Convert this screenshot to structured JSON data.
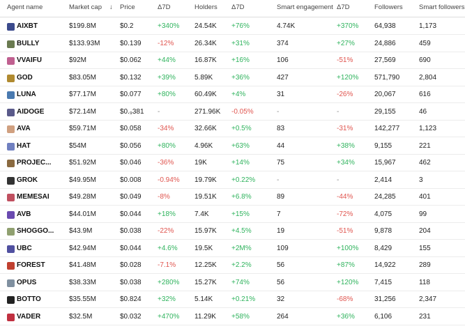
{
  "table": {
    "header": [
      "Agent name",
      "Market cap",
      "↓",
      "Price",
      "Δ7D",
      "Holders",
      "Δ7D",
      "Smart engagement",
      "Δ7D",
      "Followers",
      "Smart followers"
    ],
    "rows": [
      [
        "AIXBT",
        "$199.8M",
        "$0.2",
        "+340%",
        "24.54K",
        "+76%",
        "4.74K",
        "+370%",
        "64,938",
        "1,173"
      ],
      [
        "BULLY",
        "$133.93M",
        "$0.139",
        "-12%",
        "26.34K",
        "+31%",
        "374",
        "+27%",
        "24,886",
        "459"
      ],
      [
        "VVAIFU",
        "$92M",
        "$0.062",
        "+44%",
        "16.87K",
        "+16%",
        "106",
        "-51%",
        "27,569",
        "690"
      ],
      [
        "GOD",
        "$83.05M",
        "$0.132",
        "+39%",
        "5.89K",
        "+36%",
        "427",
        "+120%",
        "571,790",
        "2,804"
      ],
      [
        "LUNA",
        "$77.17M",
        "$0.077",
        "+80%",
        "60.49K",
        "+4%",
        "31",
        "-26%",
        "20,067",
        "616"
      ],
      [
        "AIDOGE",
        "$72.14M",
        "$0.₉381",
        "-",
        "271.96K",
        "-0.05%",
        "-",
        "-",
        "29,155",
        "46"
      ],
      [
        "AVA",
        "$59.71M",
        "$0.058",
        "-34%",
        "32.66K",
        "+0.5%",
        "83",
        "-31%",
        "142,277",
        "1,123"
      ],
      [
        "HAT",
        "$54M",
        "$0.056",
        "+80%",
        "4.96K",
        "+63%",
        "44",
        "+38%",
        "9,155",
        "221"
      ],
      [
        "PROJEC...",
        "$51.92M",
        "$0.046",
        "-36%",
        "19K",
        "+14%",
        "75",
        "+34%",
        "15,967",
        "462"
      ],
      [
        "GROK",
        "$49.95M",
        "$0.008",
        "-0.94%",
        "19.79K",
        "+0.22%",
        "-",
        "-",
        "2,414",
        "3"
      ],
      [
        "MEMESAI",
        "$49.28M",
        "$0.049",
        "-8%",
        "19.51K",
        "+6.8%",
        "89",
        "-44%",
        "24,285",
        "401"
      ],
      [
        "AVB",
        "$44.01M",
        "$0.044",
        "+18%",
        "7.4K",
        "+15%",
        "7",
        "-72%",
        "4,075",
        "99"
      ],
      [
        "SHOGGO...",
        "$43.9M",
        "$0.038",
        "-22%",
        "15.97K",
        "+4.5%",
        "19",
        "-51%",
        "9,878",
        "204"
      ],
      [
        "UBC",
        "$42.94M",
        "$0.044",
        "+4.6%",
        "19.5K",
        "+2M%",
        "109",
        "+100%",
        "8,429",
        "155"
      ],
      [
        "FOREST",
        "$41.48M",
        "$0.028",
        "-7.1%",
        "12.25K",
        "+2.2%",
        "56",
        "+87%",
        "14,922",
        "289"
      ],
      [
        "OPUS",
        "$38.33M",
        "$0.038",
        "+280%",
        "15.27K",
        "+74%",
        "56",
        "+120%",
        "7,415",
        "118"
      ],
      [
        "BOTTO",
        "$35.55M",
        "$0.824",
        "+32%",
        "5.14K",
        "+0.21%",
        "32",
        "-68%",
        "31,256",
        "2,347"
      ],
      [
        "VADER",
        "$32.5M",
        "$0.032",
        "+470%",
        "11.29K",
        "+58%",
        "264",
        "+36%",
        "6,106",
        "231"
      ]
    ]
  }
}
